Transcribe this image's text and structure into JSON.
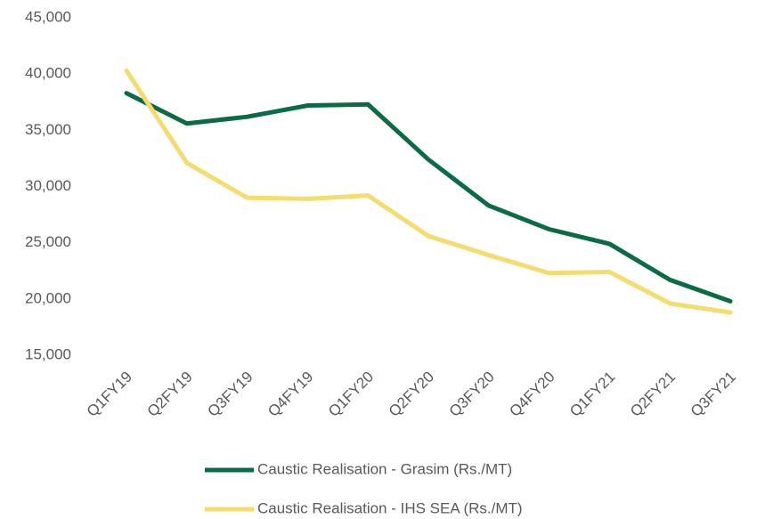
{
  "chart_data": {
    "type": "line",
    "categories": [
      "Q1FY19",
      "Q2FY19",
      "Q3FY19",
      "Q4FY19",
      "Q1FY20",
      "Q2FY20",
      "Q3FY20",
      "Q4FY20",
      "Q1FY21",
      "Q2FY21",
      "Q3FY21"
    ],
    "series": [
      {
        "name": "Caustic Realisation - Grasim (Rs./MT)",
        "color": "#0b6b45",
        "values": [
          38300,
          35600,
          36200,
          37200,
          37300,
          32400,
          28300,
          26200,
          24900,
          21700,
          19800
        ]
      },
      {
        "name": "Caustic Realisation - IHS SEA (Rs./MT)",
        "color": "#f5dc6e",
        "values": [
          40300,
          32100,
          29000,
          28900,
          29200,
          25600,
          23900,
          22300,
          22400,
          19600,
          18800
        ]
      }
    ],
    "ylim": [
      15000,
      45000
    ],
    "yticks": [
      {
        "value": 15000,
        "label": "15,000"
      },
      {
        "value": 20000,
        "label": "20,000"
      },
      {
        "value": 25000,
        "label": "25,000"
      },
      {
        "value": 30000,
        "label": "30,000"
      },
      {
        "value": 35000,
        "label": "35,000"
      },
      {
        "value": 40000,
        "label": "40,000"
      },
      {
        "value": 45000,
        "label": "45,000"
      }
    ],
    "grid": false,
    "legend": "bottom"
  }
}
